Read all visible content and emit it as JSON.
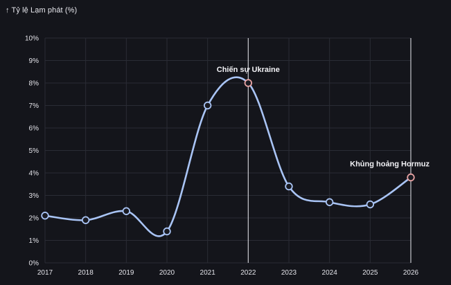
{
  "chart_data": {
    "type": "line",
    "title": "↑ Tỷ lệ Lạm phát (%)",
    "xlabel": "",
    "ylabel": "",
    "x": [
      "2017",
      "2018",
      "2019",
      "2020",
      "2021",
      "2022",
      "2023",
      "2024",
      "2025",
      "2026"
    ],
    "series": [
      {
        "values": [
          2.1,
          1.9,
          2.3,
          1.4,
          7.0,
          8.0,
          3.4,
          2.7,
          2.6,
          3.8
        ]
      }
    ],
    "ylim": [
      0,
      10
    ],
    "y_ticks": [
      "0%",
      "1%",
      "2%",
      "3%",
      "4%",
      "5%",
      "6%",
      "7%",
      "8%",
      "9%",
      "10%"
    ],
    "grid": true,
    "annotations": [
      {
        "x": "2022",
        "y": 8.0,
        "label": "Chiến sự Ukraine"
      },
      {
        "x": "2026",
        "y": 3.8,
        "label": "Khủng hoảng Hormuz"
      }
    ],
    "colors": {
      "background": "#14151b",
      "line": "#a9c4f5",
      "marker_fill": "#1a1b22",
      "annotation_marker": "#e8a3a3",
      "annotation_line": "#c9c9cf",
      "grid": "#2a2c35"
    }
  }
}
